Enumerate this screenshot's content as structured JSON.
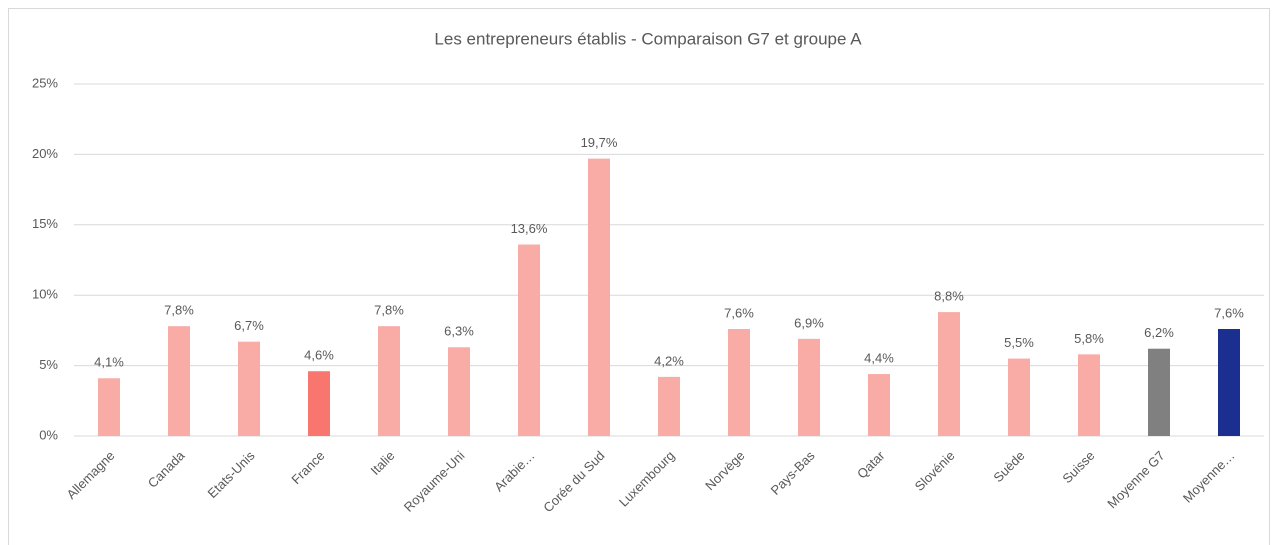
{
  "chart_data": {
    "type": "bar",
    "title": "Les entrepreneurs établis - Comparaison G7 et groupe A",
    "categories": [
      "Allemagne",
      "Canada",
      "Etats-Unis",
      "France",
      "Italie",
      "Royaume-Uni",
      "Arabie…",
      "Corée du Sud",
      "Luxembourg",
      "Norvège",
      "Pays-Bas",
      "Qatar",
      "Slovénie",
      "Suède",
      "Suisse",
      "Moyenne G7",
      "Moyenne…"
    ],
    "values": [
      4.1,
      7.8,
      6.7,
      4.6,
      7.8,
      6.3,
      13.6,
      19.7,
      4.2,
      7.6,
      6.9,
      4.4,
      8.8,
      5.5,
      5.8,
      6.2,
      7.6
    ],
    "value_labels": [
      "4,1%",
      "7,8%",
      "6,7%",
      "4,6%",
      "7,8%",
      "6,3%",
      "13,6%",
      "19,7%",
      "4,2%",
      "7,6%",
      "6,9%",
      "4,4%",
      "8,8%",
      "5,5%",
      "5,8%",
      "6,2%",
      "7,6%"
    ],
    "colors": [
      "#f9aca6",
      "#f9aca6",
      "#f9aca6",
      "#f8766d",
      "#f9aca6",
      "#f9aca6",
      "#f9aca6",
      "#f9aca6",
      "#f9aca6",
      "#f9aca6",
      "#f9aca6",
      "#f9aca6",
      "#f9aca6",
      "#f9aca6",
      "#f9aca6",
      "#808080",
      "#1a2f8f"
    ],
    "ylim": [
      0,
      25
    ],
    "yticks": [
      {
        "value": 0,
        "label": "0%"
      },
      {
        "value": 5,
        "label": "5%"
      },
      {
        "value": 10,
        "label": "10%"
      },
      {
        "value": 15,
        "label": "15%"
      },
      {
        "value": 20,
        "label": "20%"
      },
      {
        "value": 25,
        "label": "25%"
      }
    ],
    "grid": true
  }
}
